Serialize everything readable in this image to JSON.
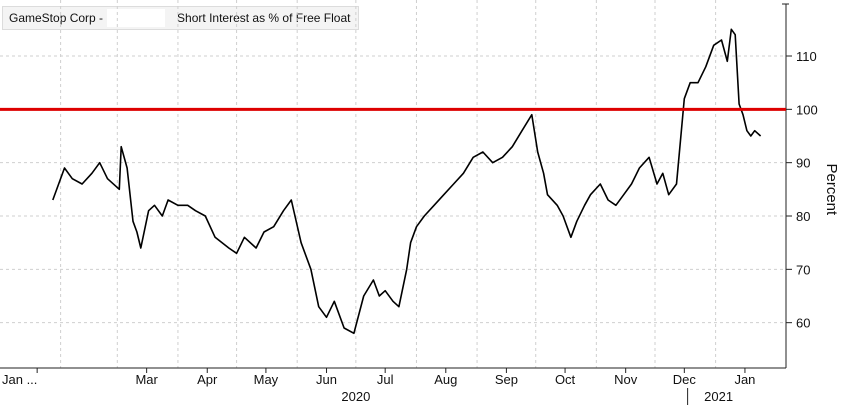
{
  "legend": {
    "ticker": "GameStop Corp -",
    "series_label": "Short Interest as % of Free Float"
  },
  "colors": {
    "line": "#000000",
    "threshold": "#dd0000",
    "grid": "#cfcfcf",
    "axis": "#222222"
  },
  "chart_data": {
    "type": "line",
    "title": "",
    "xlabel": "",
    "ylabel": "Percent",
    "ylim": [
      51.5,
      120.5
    ],
    "y_ticks": [
      60,
      70,
      80,
      90,
      100,
      110
    ],
    "x_ticks": [
      "Jan ...",
      "Mar",
      "Apr",
      "May",
      "Jun",
      "Jul",
      "Aug",
      "Sep",
      "Oct",
      "Nov",
      "Dec",
      "Jan"
    ],
    "x_year_labels": [
      "2020",
      "2021"
    ],
    "grid": true,
    "legend_position": "top-left",
    "threshold": {
      "y": 100,
      "label": ""
    },
    "series": [
      {
        "name": "Short Interest as % of Free Float",
        "x": [
          "2020-01-28",
          "2020-02-03",
          "2020-02-07",
          "2020-02-12",
          "2020-02-17",
          "2020-02-21",
          "2020-02-25",
          "2020-03-02",
          "2020-03-03",
          "2020-03-06",
          "2020-03-09",
          "2020-03-11",
          "2020-03-13",
          "2020-03-17",
          "2020-03-20",
          "2020-03-24",
          "2020-03-27",
          "2020-04-01",
          "2020-04-06",
          "2020-04-10",
          "2020-04-15",
          "2020-04-20",
          "2020-04-27",
          "2020-05-01",
          "2020-05-05",
          "2020-05-11",
          "2020-05-15",
          "2020-05-20",
          "2020-05-25",
          "2020-05-29",
          "2020-06-03",
          "2020-06-08",
          "2020-06-12",
          "2020-06-16",
          "2020-06-20",
          "2020-06-25",
          "2020-06-30",
          "2020-07-05",
          "2020-07-10",
          "2020-07-13",
          "2020-07-16",
          "2020-07-20",
          "2020-07-23",
          "2020-07-27",
          "2020-07-29",
          "2020-08-01",
          "2020-08-05",
          "2020-08-10",
          "2020-08-15",
          "2020-08-20",
          "2020-08-25",
          "2020-08-30",
          "2020-09-04",
          "2020-09-09",
          "2020-09-14",
          "2020-09-19",
          "2020-09-24",
          "2020-09-29",
          "2020-10-02",
          "2020-10-05",
          "2020-10-07",
          "2020-10-12",
          "2020-10-15",
          "2020-10-19",
          "2020-10-22",
          "2020-10-26",
          "2020-10-29",
          "2020-11-03",
          "2020-11-07",
          "2020-11-11",
          "2020-11-15",
          "2020-11-19",
          "2020-11-23",
          "2020-11-28",
          "2020-12-02",
          "2020-12-05",
          "2020-12-08",
          "2020-12-12",
          "2020-12-16",
          "2020-12-19",
          "2020-12-23",
          "2020-12-27",
          "2020-12-31",
          "2021-01-04",
          "2021-01-07",
          "2021-01-09",
          "2021-01-11",
          "2021-01-13",
          "2021-01-15",
          "2021-01-17",
          "2021-01-19",
          "2021-01-21",
          "2021-01-24"
        ],
        "y": [
          83,
          89,
          87,
          86,
          88,
          90,
          87,
          85,
          93,
          89,
          79,
          77,
          74,
          81,
          82,
          80,
          83,
          82,
          82,
          81,
          80,
          76,
          74,
          73,
          76,
          74,
          77,
          78,
          81,
          83,
          75,
          70,
          63,
          61,
          64,
          59,
          58,
          65,
          68,
          65,
          66,
          64,
          63,
          70,
          75,
          78,
          80,
          82,
          84,
          86,
          88,
          91,
          92,
          90,
          91,
          93,
          96,
          99,
          92,
          88,
          84,
          82,
          80,
          76,
          79,
          82,
          84,
          86,
          83,
          82,
          84,
          86,
          89,
          91,
          86,
          88,
          84,
          86,
          102,
          105,
          105,
          108,
          112,
          113,
          109,
          115,
          114,
          101,
          99,
          96,
          95,
          96,
          95
        ]
      }
    ]
  }
}
